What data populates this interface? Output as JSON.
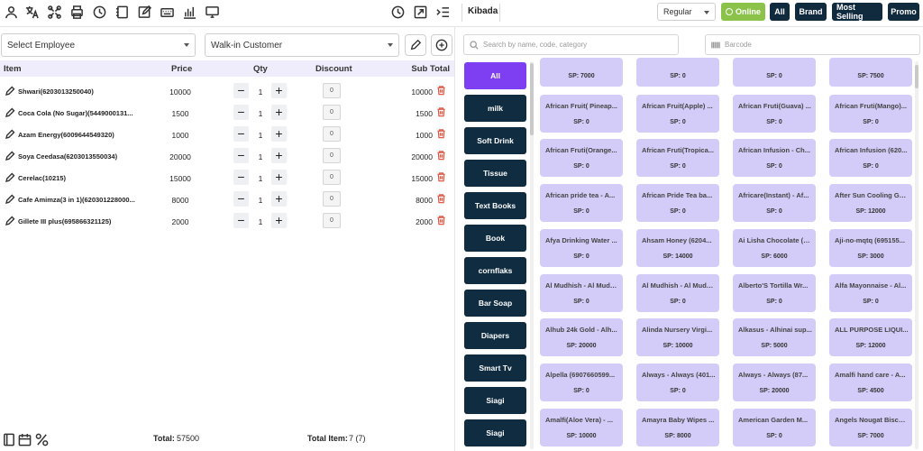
{
  "toolbar": {
    "icons": [
      "user-icon",
      "translate-icon",
      "puzzle-icon",
      "printer-icon",
      "history-icon",
      "notebook-icon",
      "edit-icon",
      "keyboard-icon",
      "chart-icon",
      "monitor-icon",
      "clock-icon",
      "expand-icon",
      "list-indent-icon"
    ]
  },
  "store": {
    "name": "Kibada"
  },
  "price_mode": {
    "selected": "Regular"
  },
  "buttons": {
    "online": "Online",
    "all": "All",
    "brand": "Brand",
    "most_selling": "Most Selling",
    "promo": "Promo"
  },
  "employee": {
    "placeholder": "Select Employee"
  },
  "customer": {
    "selected": "Walk-in Customer"
  },
  "table": {
    "headers": {
      "item": "Item",
      "price": "Price",
      "qty": "Qty",
      "discount": "Discount",
      "subtotal": "Sub Total"
    },
    "rows": [
      {
        "name": "Shwari(6203013250040)",
        "price": "10000",
        "qty": "1",
        "discount": "0",
        "subtotal": "10000"
      },
      {
        "name": "Coca Cola (No Sugar)(5449000131...",
        "price": "1500",
        "qty": "1",
        "discount": "0",
        "subtotal": "1500"
      },
      {
        "name": "Azam Energy(6009644549320)",
        "price": "1000",
        "qty": "1",
        "discount": "0",
        "subtotal": "1000"
      },
      {
        "name": "Soya Ceedasa(6203013550034)",
        "price": "20000",
        "qty": "1",
        "discount": "0",
        "subtotal": "20000"
      },
      {
        "name": "Cerelac(10215)",
        "price": "15000",
        "qty": "1",
        "discount": "0",
        "subtotal": "15000"
      },
      {
        "name": "Cafe Amimza(3 in 1)(620301228000...",
        "price": "8000",
        "qty": "1",
        "discount": "0",
        "subtotal": "8000"
      },
      {
        "name": "Gillete III plus(695866321125)",
        "price": "2000",
        "qty": "1",
        "discount": "0",
        "subtotal": "2000"
      }
    ]
  },
  "footer": {
    "total_label": "Total:",
    "total_value": "57500",
    "items_label": "Total Item:",
    "items_value": "7 (7)"
  },
  "search": {
    "placeholder": "Search by name, code, category",
    "barcode_placeholder": "Barcode"
  },
  "categories": [
    "All",
    "milk",
    "Soft Drink",
    "Tissue",
    "Text Books",
    "Book",
    "cornflaks",
    "Bar Soap",
    "Diapers",
    "Smart Tv",
    "Siagi",
    "Siagi"
  ],
  "products": [
    {
      "name": "",
      "sp": "SP: 7000"
    },
    {
      "name": "",
      "sp": "SP: 0"
    },
    {
      "name": "",
      "sp": "SP: 0"
    },
    {
      "name": "",
      "sp": "SP: 7500"
    },
    {
      "name": "African Fruit( Pineap...",
      "sp": "SP: 0"
    },
    {
      "name": "African Fruit(Apple) ...",
      "sp": "SP: 0"
    },
    {
      "name": "African Fruti(Guava) ...",
      "sp": "SP: 0"
    },
    {
      "name": "African Fruti(Mango)...",
      "sp": "SP: 0"
    },
    {
      "name": "African Fruti(Orange...",
      "sp": "SP: 0"
    },
    {
      "name": "African Fruti(Tropica...",
      "sp": "SP: 0"
    },
    {
      "name": "African Infusion - Ch...",
      "sp": "SP: 0"
    },
    {
      "name": "African Infusion (620...",
      "sp": "SP: 0"
    },
    {
      "name": "African pride tea - A...",
      "sp": "SP: 0"
    },
    {
      "name": "African Pride Tea ba...",
      "sp": "SP: 0"
    },
    {
      "name": "Africare(Instant) - Af...",
      "sp": "SP: 0"
    },
    {
      "name": "After Sun Cooling Ge...",
      "sp": "SP: 12000"
    },
    {
      "name": "Afya Drinking Water ...",
      "sp": "SP: 0"
    },
    {
      "name": "Ahsam Honey (6204...",
      "sp": "SP: 14000"
    },
    {
      "name": "Ai Lisha Chocolate (6...",
      "sp": "SP: 6000"
    },
    {
      "name": "Aji-no-mqtq (695155...",
      "sp": "SP: 3000"
    },
    {
      "name": "Al Mudhish - Al Mudh...",
      "sp": "SP: 0"
    },
    {
      "name": "Al Mudhish - Al Mudh...",
      "sp": "SP: 0"
    },
    {
      "name": "Alberto'S Tortilla Wr...",
      "sp": "SP: 0"
    },
    {
      "name": "Alfa Mayonnaise - Al...",
      "sp": "SP: 0"
    },
    {
      "name": "Alhub 24k Gold - Alh...",
      "sp": "SP: 20000"
    },
    {
      "name": "Alinda Nursery Virgi...",
      "sp": "SP: 10000"
    },
    {
      "name": "Alkasus - Alhinai sup...",
      "sp": "SP: 5000"
    },
    {
      "name": "ALL PURPOSE LIQUI...",
      "sp": "SP: 12000"
    },
    {
      "name": "Alpella (6907660599...",
      "sp": "SP: 0"
    },
    {
      "name": "Always - Always (401...",
      "sp": "SP: 0"
    },
    {
      "name": "Always - Always (87...",
      "sp": "SP: 20000"
    },
    {
      "name": "Amalfi hand care - A...",
      "sp": "SP: 4500"
    },
    {
      "name": "Amalfi(Aloe Vera) - ...",
      "sp": "SP: 10000"
    },
    {
      "name": "Amayra Baby Wipes ...",
      "sp": "SP: 8000"
    },
    {
      "name": "American Garden M...",
      "sp": "SP: 0"
    },
    {
      "name": "Angels Nougat Biscui...",
      "sp": "SP: 7000"
    }
  ]
}
